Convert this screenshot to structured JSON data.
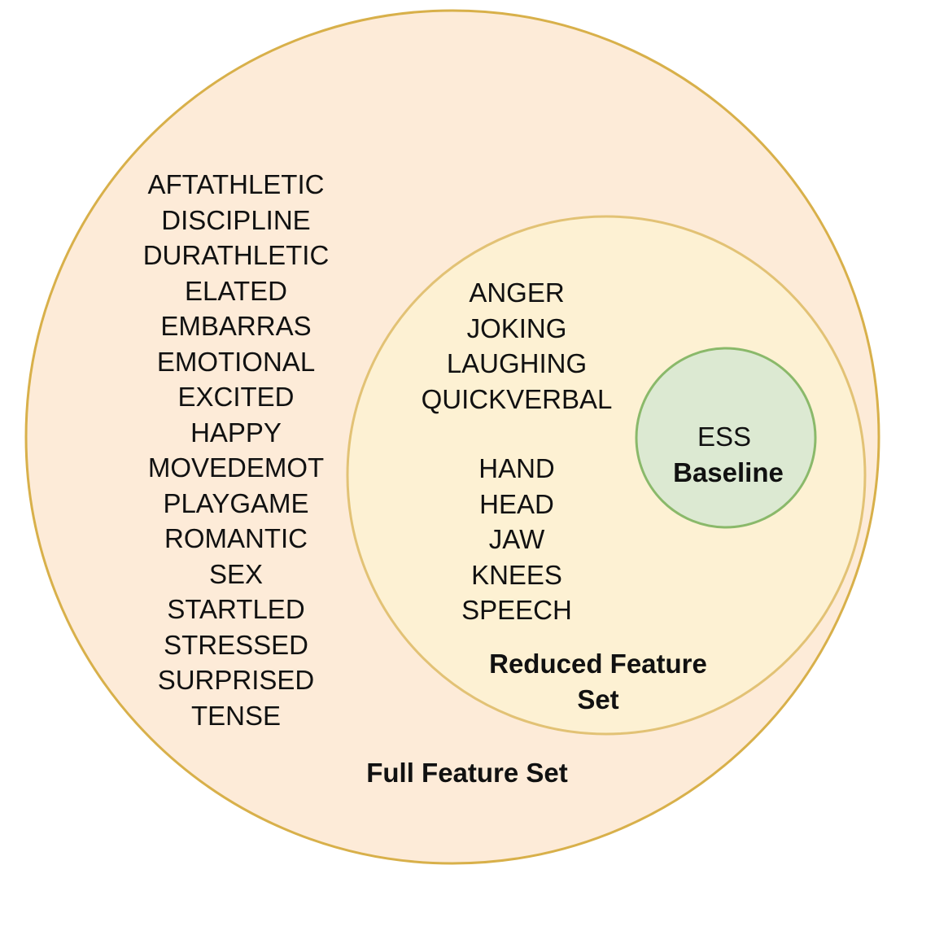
{
  "colors": {
    "full_fill": "#fdebd8",
    "full_stroke": "#d8b04a",
    "reduced_fill": "#fdf1d3",
    "reduced_stroke": "#e2c275",
    "ess_fill": "#dce9d2",
    "ess_stroke": "#8ab96a"
  },
  "full_set": {
    "title": "Full Feature Set",
    "items": [
      "AFTATHLETIC",
      "DISCIPLINE",
      "DURATHLETIC",
      "ELATED",
      "EMBARRAS",
      "EMOTIONAL",
      "EXCITED",
      "HAPPY",
      "MOVEDEMOT",
      "PLAYGAME",
      "ROMANTIC",
      "SEX",
      "STARTLED",
      "STRESSED",
      "SURPRISED",
      "TENSE"
    ]
  },
  "reduced_set": {
    "title_line1": "Reduced Feature",
    "title_line2": "Set",
    "group1": [
      "ANGER",
      "JOKING",
      "LAUGHING",
      "QUICKVERBAL"
    ],
    "group2": [
      "HAND",
      "HEAD",
      "JAW",
      "KNEES",
      "SPEECH"
    ]
  },
  "ess": {
    "line1": "ESS",
    "line2": "Baseline"
  }
}
